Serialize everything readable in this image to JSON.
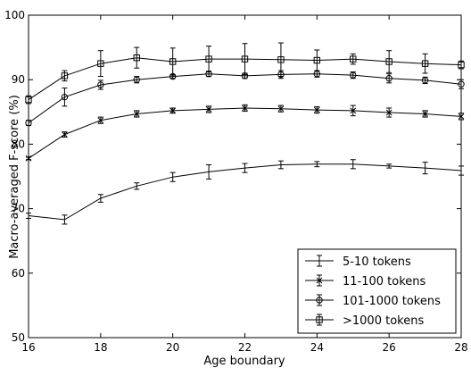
{
  "chart_data": {
    "type": "line",
    "title": "",
    "xlabel": "Age boundary",
    "ylabel": "Macro-averaged F-score (%)",
    "xlim": [
      16,
      28
    ],
    "ylim": [
      50,
      100
    ],
    "x_ticks": [
      "16",
      "18",
      "20",
      "22",
      "24",
      "26",
      "28"
    ],
    "y_ticks": [
      "50",
      "60",
      "70",
      "80",
      "90",
      "100"
    ],
    "grid": false,
    "legend_position": "lower-right",
    "x": [
      16,
      17,
      18,
      19,
      20,
      21,
      22,
      23,
      24,
      25,
      26,
      27,
      28
    ],
    "series": [
      {
        "name": "5-10 tokens",
        "marker": "none",
        "values": [
          68.9,
          68.3,
          71.6,
          73.5,
          74.9,
          75.7,
          76.3,
          76.8,
          76.9,
          76.9,
          76.6,
          76.3,
          75.9
        ],
        "errors": [
          0.4,
          0.7,
          0.6,
          0.5,
          0.7,
          1.1,
          0.7,
          0.6,
          0.4,
          0.7,
          0.3,
          0.9,
          0.7
        ]
      },
      {
        "name": "11-100 tokens",
        "marker": "x",
        "values": [
          77.8,
          81.5,
          83.7,
          84.7,
          85.2,
          85.4,
          85.6,
          85.5,
          85.3,
          85.2,
          84.9,
          84.7,
          84.3
        ],
        "errors": [
          0.2,
          0.4,
          0.5,
          0.5,
          0.4,
          0.5,
          0.5,
          0.5,
          0.5,
          0.8,
          0.7,
          0.5,
          0.5
        ]
      },
      {
        "name": "101-1000 tokens",
        "marker": "circle",
        "values": [
          83.3,
          87.3,
          89.2,
          90.0,
          90.5,
          90.9,
          90.6,
          90.8,
          90.9,
          90.7,
          90.2,
          89.9,
          89.3
        ],
        "errors": [
          0.4,
          1.4,
          0.7,
          0.5,
          0.3,
          0.4,
          0.4,
          0.6,
          0.5,
          0.5,
          0.7,
          0.5,
          0.7
        ]
      },
      {
        "name": ">1000 tokens",
        "marker": "square",
        "values": [
          86.9,
          90.6,
          92.5,
          93.4,
          92.8,
          93.2,
          93.2,
          93.1,
          93.0,
          93.2,
          92.8,
          92.5,
          92.3
        ],
        "errors": [
          0.6,
          0.8,
          2.0,
          1.6,
          2.1,
          2.0,
          2.4,
          2.6,
          1.6,
          0.8,
          1.7,
          1.5,
          0.6
        ]
      }
    ]
  }
}
